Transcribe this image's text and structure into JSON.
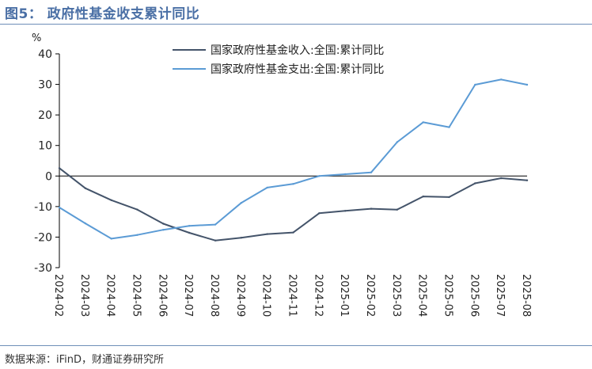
{
  "figure": {
    "title": "图5： 政府性基金收支累计同比",
    "source": "数据来源：iFinD，财通证券研究所"
  },
  "chart_data": {
    "type": "line",
    "title": "",
    "xlabel": "",
    "ylabel": "%",
    "ylim": [
      -30,
      40
    ],
    "yticks": [
      -30,
      -20,
      -10,
      0,
      10,
      20,
      30,
      40
    ],
    "grid": false,
    "legend_position": "top-right",
    "x": [
      "2024-02",
      "2024-03",
      "2024-04",
      "2024-05",
      "2024-06",
      "2024-07",
      "2024-08",
      "2024-09",
      "2024-10",
      "2024-11",
      "2024-12",
      "2025-01",
      "2025-02",
      "2025-03",
      "2025-04",
      "2025-05",
      "2025-06",
      "2025-07",
      "2025-08"
    ],
    "series": [
      {
        "name": "国家政府性基金收入:全国:累计同比",
        "color": "#44546a",
        "values": [
          2.6,
          -4.0,
          -7.9,
          -11.0,
          -15.6,
          -18.6,
          -21.1,
          -20.2,
          -19.0,
          -18.5,
          -12.2,
          -11.4,
          -10.7,
          -11.0,
          -6.7,
          -6.9,
          -2.4,
          -0.7,
          -1.4
        ]
      },
      {
        "name": "国家政府性基金支出:全国:累计同比",
        "color": "#5b9bd5",
        "values": [
          -10.3,
          -15.5,
          -20.5,
          -19.3,
          -17.6,
          -16.3,
          -15.9,
          -8.8,
          -3.8,
          -2.6,
          0.0,
          0.6,
          1.2,
          11.1,
          17.6,
          16.0,
          29.9,
          31.6,
          29.9
        ]
      }
    ]
  }
}
